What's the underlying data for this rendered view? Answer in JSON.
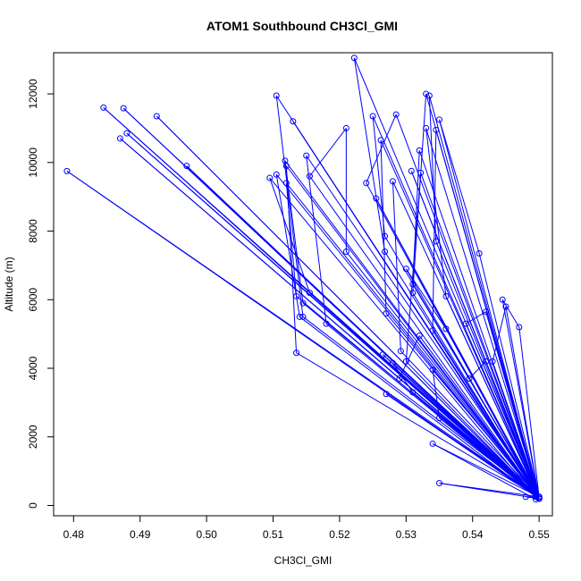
{
  "chart_data": {
    "type": "line",
    "title": "ATOM1 Southbound CH3Cl_GMI",
    "xlabel": "CH3Cl_GMI",
    "ylabel": "Altitude (m)",
    "xlim": [
      0.477,
      0.552
    ],
    "ylim": [
      -300,
      13200
    ],
    "xticks": [
      0.48,
      0.49,
      0.5,
      0.51,
      0.52,
      0.53,
      0.54,
      0.55
    ],
    "xtick_labels": [
      "0.48",
      "0.49",
      "0.50",
      "0.51",
      "0.52",
      "0.53",
      "0.54",
      "0.55"
    ],
    "yticks": [
      0,
      2000,
      4000,
      6000,
      8000,
      10000,
      12000
    ],
    "ytick_labels": [
      "0",
      "2000",
      "4000",
      "6000",
      "8000",
      "10000",
      "12000"
    ],
    "line_color": "#0000ff",
    "marker": "open-circle",
    "series": [
      {
        "name": "CH3Cl_GMI",
        "x": [
          0.55,
          0.479,
          0.55,
          0.4845,
          0.55,
          0.487,
          0.5495,
          0.488,
          0.55,
          0.4875,
          0.55,
          0.4925,
          0.5495,
          0.497,
          0.55,
          0.5105,
          0.5145,
          0.55,
          0.512,
          0.5135,
          0.55,
          0.5105,
          0.514,
          0.5495,
          0.5095,
          0.5155,
          0.55,
          0.5118,
          0.5145,
          0.55,
          0.513,
          0.55,
          0.512,
          0.5135,
          0.55,
          0.515,
          0.518,
          0.55,
          0.5155,
          0.521,
          0.521,
          0.55,
          0.5222,
          0.5268,
          0.55,
          0.525,
          0.5268,
          0.55,
          0.5285,
          0.524,
          0.55,
          0.5262,
          0.527,
          0.55,
          0.5255,
          0.55,
          0.528,
          0.5292,
          0.55,
          0.5308,
          0.55,
          0.532,
          0.531,
          0.55,
          0.5335,
          0.5345,
          0.55,
          0.531,
          0.533,
          0.55,
          0.5322,
          0.53,
          0.55,
          0.5345,
          0.534,
          0.55,
          0.533,
          0.536,
          0.55,
          0.535,
          0.541,
          0.55,
          0.539,
          0.542,
          0.55,
          0.545,
          0.543,
          0.55,
          0.547,
          0.5445,
          0.55,
          0.542,
          0.5395,
          0.55,
          0.536,
          0.53,
          0.55,
          0.528,
          0.531,
          0.55,
          0.529,
          0.532,
          0.55,
          0.535,
          0.534,
          0.55,
          0.527,
          0.55,
          0.5265,
          0.55,
          0.548,
          0.55,
          0.535,
          0.55,
          0.534,
          0.5495,
          0.55
        ],
        "y": [
          200,
          9750,
          250,
          11600,
          200,
          10700,
          300,
          10850,
          250,
          11580,
          200,
          11350,
          300,
          9900,
          200,
          11950,
          5500,
          250,
          9400,
          6100,
          200,
          9650,
          5500,
          250,
          9550,
          6200,
          200,
          10050,
          5900,
          250,
          11200,
          200,
          9900,
          4450,
          250,
          10200,
          5300,
          200,
          9600,
          11000,
          7400,
          250,
          13050,
          7400,
          200,
          11350,
          7850,
          250,
          11400,
          9400,
          200,
          10650,
          5600,
          250,
          8950,
          200,
          9450,
          4500,
          250,
          9750,
          200,
          10350,
          6450,
          250,
          11950,
          7700,
          200,
          6200,
          12000,
          250,
          9700,
          4200,
          200,
          10950,
          5100,
          250,
          11000,
          6100,
          200,
          11250,
          7350,
          250,
          5300,
          5650,
          200,
          5800,
          4200,
          250,
          5200,
          6000,
          200,
          4200,
          3700,
          250,
          5150,
          6900,
          200,
          4150,
          3300,
          250,
          3700,
          4950,
          200,
          2550,
          3950,
          250,
          3250,
          200,
          4400,
          250,
          250,
          200,
          650,
          250,
          1800,
          180,
          200
        ]
      }
    ]
  }
}
